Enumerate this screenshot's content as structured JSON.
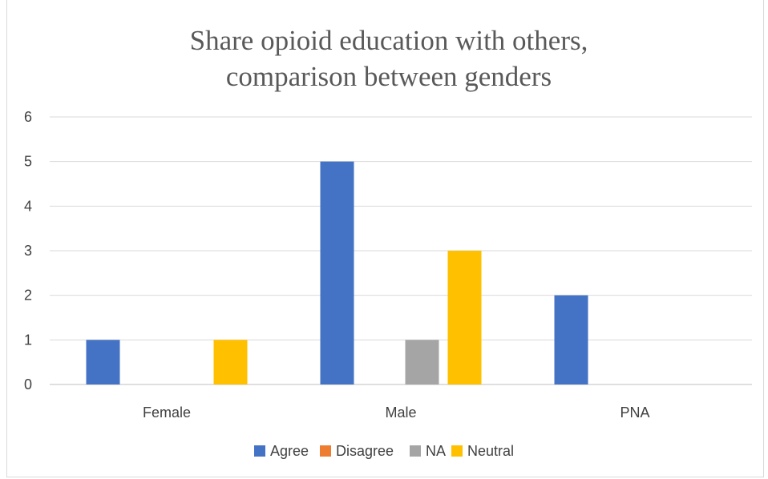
{
  "chart_data": {
    "type": "bar",
    "title_lines": [
      "Share opioid education with others,",
      "comparison between genders"
    ],
    "xlabel": "",
    "ylabel": "",
    "categories": [
      "Female",
      "Male",
      "PNA"
    ],
    "series": [
      {
        "name": "Agree",
        "color": "#4472C4",
        "values": [
          1,
          5,
          2
        ]
      },
      {
        "name": "Disagree",
        "color": "#ED7D31",
        "values": [
          0,
          0,
          0
        ]
      },
      {
        "name": "NA",
        "color": "#A5A5A5",
        "values": [
          0,
          1,
          0
        ]
      },
      {
        "name": "Neutral",
        "color": "#FFC000",
        "values": [
          1,
          3,
          0
        ]
      }
    ],
    "ylim": [
      0,
      6
    ],
    "yticks": [
      0,
      1,
      2,
      3,
      4,
      5,
      6
    ],
    "grid": true,
    "legend": "bottom"
  }
}
